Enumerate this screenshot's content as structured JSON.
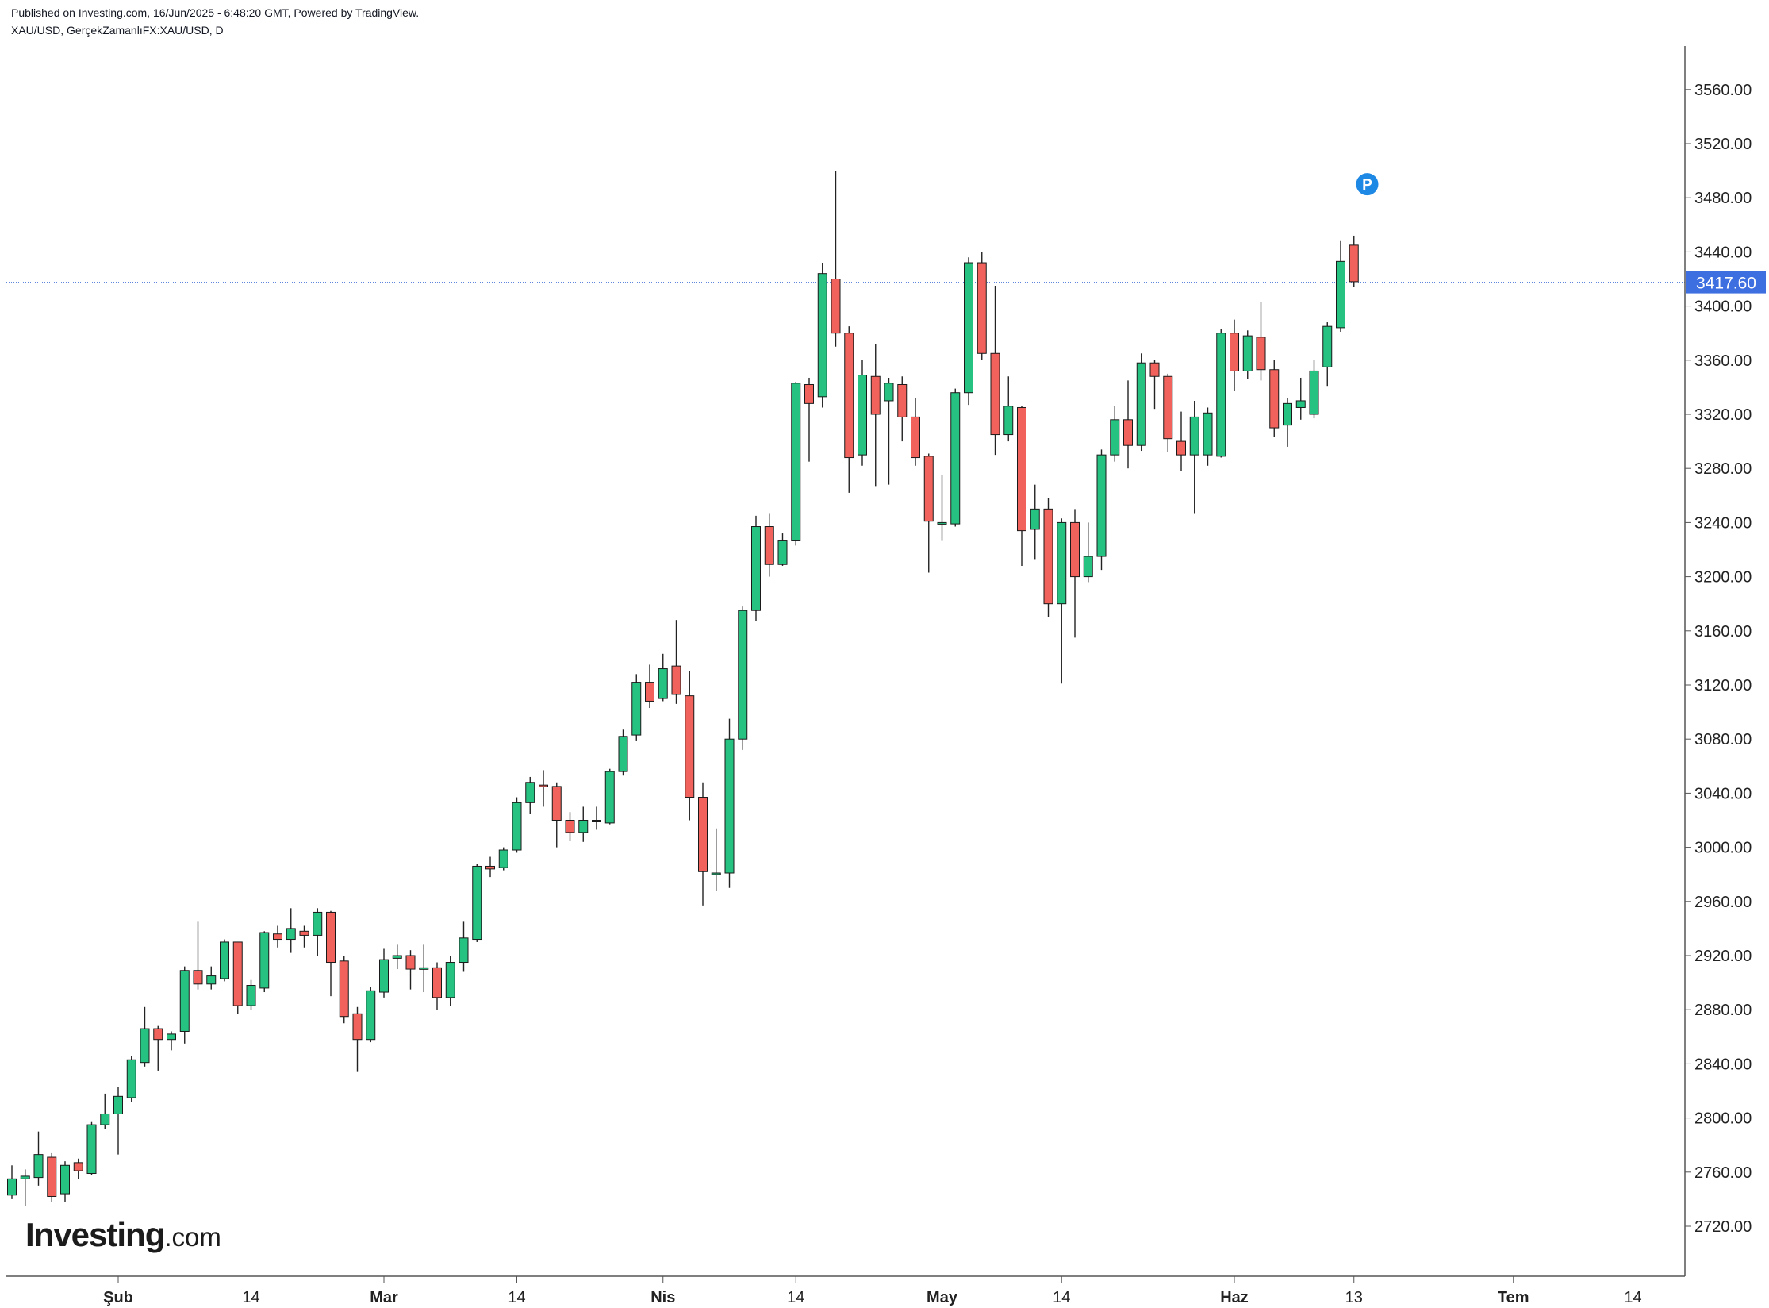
{
  "header": {
    "published": "Published on Investing.com, 16/Jun/2025 - 6:48:20 GMT, Powered by TradingView.",
    "symbol": "XAU/USD, GerçekZamanlıFX:XAU/USD, D"
  },
  "logo": {
    "brand": "Investing",
    "suffix": ".com"
  },
  "colors": {
    "up": "#26c281",
    "down": "#f0625b",
    "outline": "#1a1a1a",
    "price_line": "#4a74d8",
    "price_label_bg": "#3e6fe0",
    "marker": "#1e88e5"
  },
  "chart_data": {
    "type": "candlestick",
    "timeframe": "D",
    "ylim": [
      2690,
      3590
    ],
    "yticks": [
      2720,
      2760,
      2800,
      2840,
      2880,
      2920,
      2960,
      3000,
      3040,
      3080,
      3120,
      3160,
      3200,
      3240,
      3280,
      3320,
      3360,
      3400,
      3440,
      3480,
      3520,
      3560
    ],
    "ytick_labels": [
      "2720.00",
      "2760.00",
      "2800.00",
      "2840.00",
      "2880.00",
      "2920.00",
      "2960.00",
      "3000.00",
      "3040.00",
      "3080.00",
      "3120.00",
      "3160.00",
      "3200.00",
      "3240.00",
      "3280.00",
      "3320.00",
      "3360.00",
      "3400.00",
      "3440.00",
      "3480.00",
      "3520.00",
      "3560.00"
    ],
    "xticks": [
      {
        "label": "Şub",
        "bar": 8,
        "major": true
      },
      {
        "label": "14",
        "bar": 18,
        "major": false
      },
      {
        "label": "Mar",
        "bar": 28,
        "major": true
      },
      {
        "label": "14",
        "bar": 38,
        "major": false
      },
      {
        "label": "Nis",
        "bar": 49,
        "major": true
      },
      {
        "label": "14",
        "bar": 59,
        "major": false
      },
      {
        "label": "May",
        "bar": 70,
        "major": true
      },
      {
        "label": "14",
        "bar": 79,
        "major": false
      },
      {
        "label": "Haz",
        "bar": 92,
        "major": true
      },
      {
        "label": "13",
        "bar": 101,
        "major": false
      },
      {
        "label": "Tem",
        "bar": 113,
        "major": true
      },
      {
        "label": "14",
        "bar": 122,
        "major": false
      }
    ],
    "current_price": 3417.6,
    "current_price_label": "3417.60",
    "marker_label": "P",
    "marker_bar": 102,
    "marker_price": 3490,
    "candles": [
      [
        2743,
        2755,
        2740,
        2765
      ],
      [
        2755,
        2757,
        2735,
        2762
      ],
      [
        2756,
        2773,
        2750,
        2790
      ],
      [
        2771,
        2742,
        2738,
        2774
      ],
      [
        2744,
        2765,
        2738,
        2768
      ],
      [
        2767,
        2761,
        2755,
        2770
      ],
      [
        2759,
        2795,
        2758,
        2797
      ],
      [
        2795,
        2803,
        2792,
        2818
      ],
      [
        2803,
        2816,
        2773,
        2823
      ],
      [
        2815,
        2843,
        2812,
        2846
      ],
      [
        2841,
        2866,
        2838,
        2882
      ],
      [
        2866,
        2858,
        2835,
        2868
      ],
      [
        2858,
        2862,
        2850,
        2864
      ],
      [
        2864,
        2909,
        2855,
        2912
      ],
      [
        2909,
        2899,
        2895,
        2945
      ],
      [
        2899,
        2905,
        2895,
        2912
      ],
      [
        2903,
        2930,
        2901,
        2932
      ],
      [
        2930,
        2883,
        2877,
        2930
      ],
      [
        2883,
        2898,
        2880,
        2902
      ],
      [
        2896,
        2937,
        2893,
        2938
      ],
      [
        2936,
        2932,
        2926,
        2942
      ],
      [
        2932,
        2940,
        2922,
        2955
      ],
      [
        2938,
        2935,
        2926,
        2942
      ],
      [
        2935,
        2952,
        2920,
        2955
      ],
      [
        2952,
        2915,
        2890,
        2953
      ],
      [
        2916,
        2875,
        2870,
        2920
      ],
      [
        2877,
        2858,
        2834,
        2882
      ],
      [
        2858,
        2894,
        2856,
        2897
      ],
      [
        2893,
        2917,
        2889,
        2925
      ],
      [
        2918,
        2920,
        2910,
        2928
      ],
      [
        2920,
        2910,
        2895,
        2924
      ],
      [
        2910,
        2911,
        2893,
        2928
      ],
      [
        2911,
        2889,
        2880,
        2915
      ],
      [
        2889,
        2915,
        2883,
        2920
      ],
      [
        2915,
        2933,
        2908,
        2945
      ],
      [
        2932,
        2986,
        2930,
        2988
      ],
      [
        2986,
        2984,
        2978,
        2993
      ],
      [
        2985,
        2998,
        2983,
        3000
      ],
      [
        2998,
        3033,
        2996,
        3037
      ],
      [
        3033,
        3048,
        3025,
        3052
      ],
      [
        3046,
        3045,
        3030,
        3057
      ],
      [
        3045,
        3020,
        3000,
        3048
      ],
      [
        3020,
        3011,
        3005,
        3026
      ],
      [
        3011,
        3020,
        3004,
        3030
      ],
      [
        3020,
        3020,
        3013,
        3030
      ],
      [
        3018,
        3056,
        3017,
        3058
      ],
      [
        3056,
        3082,
        3053,
        3087
      ],
      [
        3083,
        3122,
        3079,
        3128
      ],
      [
        3122,
        3108,
        3103,
        3135
      ],
      [
        3110,
        3132,
        3108,
        3143
      ],
      [
        3134,
        3113,
        3106,
        3168
      ],
      [
        3112,
        3037,
        3020,
        3130
      ],
      [
        3037,
        2982,
        2957,
        3048
      ],
      [
        2981,
        2981,
        2968,
        3014
      ],
      [
        2981,
        3080,
        2970,
        3095
      ],
      [
        3080,
        3175,
        3072,
        3178
      ],
      [
        3175,
        3237,
        3167,
        3245
      ],
      [
        3237,
        3209,
        3200,
        3247
      ],
      [
        3209,
        3227,
        3208,
        3232
      ],
      [
        3227,
        3343,
        3223,
        3344
      ],
      [
        3342,
        3328,
        3285,
        3347
      ],
      [
        3333,
        3424,
        3325,
        3432
      ],
      [
        3420,
        3380,
        3370,
        3500
      ],
      [
        3380,
        3288,
        3262,
        3385
      ],
      [
        3290,
        3349,
        3282,
        3360
      ],
      [
        3348,
        3320,
        3267,
        3372
      ],
      [
        3330,
        3343,
        3268,
        3347
      ],
      [
        3342,
        3318,
        3300,
        3348
      ],
      [
        3318,
        3288,
        3282,
        3332
      ],
      [
        3289,
        3241,
        3203,
        3291
      ],
      [
        3239,
        3240,
        3227,
        3275
      ],
      [
        3239,
        3336,
        3237,
        3339
      ],
      [
        3336,
        3432,
        3327,
        3436
      ],
      [
        3432,
        3365,
        3360,
        3440
      ],
      [
        3365,
        3305,
        3290,
        3415
      ],
      [
        3305,
        3326,
        3300,
        3348
      ],
      [
        3325,
        3234,
        3208,
        3326
      ],
      [
        3235,
        3250,
        3213,
        3268
      ],
      [
        3250,
        3180,
        3170,
        3258
      ],
      [
        3180,
        3240,
        3121,
        3243
      ],
      [
        3240,
        3200,
        3155,
        3250
      ],
      [
        3200,
        3215,
        3196,
        3240
      ],
      [
        3215,
        3290,
        3205,
        3294
      ],
      [
        3290,
        3316,
        3285,
        3326
      ],
      [
        3316,
        3297,
        3280,
        3345
      ],
      [
        3297,
        3358,
        3293,
        3365
      ],
      [
        3358,
        3348,
        3324,
        3360
      ],
      [
        3348,
        3302,
        3292,
        3350
      ],
      [
        3300,
        3290,
        3278,
        3322
      ],
      [
        3290,
        3318,
        3247,
        3330
      ],
      [
        3290,
        3321,
        3282,
        3325
      ],
      [
        3289,
        3380,
        3288,
        3383
      ],
      [
        3380,
        3352,
        3337,
        3390
      ],
      [
        3352,
        3378,
        3346,
        3382
      ],
      [
        3377,
        3353,
        3345,
        3403
      ],
      [
        3353,
        3310,
        3303,
        3360
      ],
      [
        3312,
        3328,
        3296,
        3332
      ],
      [
        3325,
        3330,
        3316,
        3347
      ],
      [
        3320,
        3352,
        3317,
        3360
      ],
      [
        3355,
        3385,
        3341,
        3388
      ],
      [
        3384,
        3433,
        3381,
        3448
      ],
      [
        3445,
        3418,
        3414,
        3452
      ]
    ]
  }
}
